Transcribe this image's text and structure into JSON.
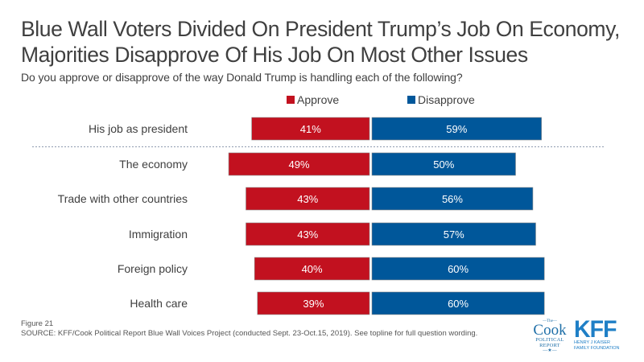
{
  "title_line1": "Blue Wall Voters Divided On President Trump’s Job On Economy,",
  "title_line2": "Majorities Disapprove Of His Job On Most Other Issues",
  "subtitle": "Do you approve or disapprove of the way Donald Trump is handling each of the following?",
  "legend": {
    "approve": "Approve",
    "disapprove": "Disapprove"
  },
  "colors": {
    "approve": "#c2111f",
    "disapprove": "#00579a",
    "text": "#3f3f3f"
  },
  "chart_data": {
    "type": "bar",
    "orientation": "horizontal-diverging",
    "title": "Blue Wall Voters Divided On President Trump’s Job On Economy, Majorities Disapprove Of His Job On Most Other Issues",
    "subtitle": "Do you approve or disapprove of the way Donald Trump is handling each of the following?",
    "categories": [
      "His job as president",
      "The economy",
      "Trade with other countries",
      "Immigration",
      "Foreign policy",
      "Health care"
    ],
    "series": [
      {
        "name": "Approve",
        "values": [
          41,
          49,
          43,
          43,
          40,
          39
        ],
        "labels": [
          "41%",
          "49%",
          "43%",
          "43%",
          "40%",
          "39%"
        ]
      },
      {
        "name": "Disapprove",
        "values": [
          59,
          50,
          56,
          57,
          60,
          60
        ],
        "labels": [
          "59%",
          "50%",
          "56%",
          "57%",
          "60%",
          "60%"
        ]
      }
    ],
    "legend_position": "top",
    "separator_after_index": 0,
    "grid": false
  },
  "footer": {
    "figure": "Figure 21",
    "source": "SOURCE: KFF/Cook Political Report Blue Wall Voices Project (conducted  Sept. 23-Oct.15, 2019). See topline for full question wording."
  },
  "logos": {
    "cook_the": "—The—",
    "cook_name": "Cook",
    "cook_political": "POLITICAL",
    "cook_report": "REPORT",
    "cook_star": "—★—",
    "kff_big": "KFF",
    "kff_line1": "HENRY J KAISER",
    "kff_line2": "FAMILY FOUNDATION"
  }
}
